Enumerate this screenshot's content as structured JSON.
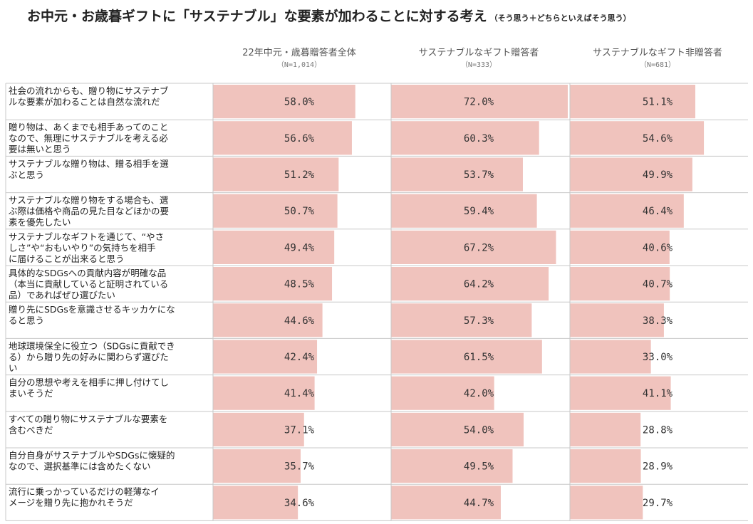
{
  "title": {
    "main": "お中元・お歳暮ギフトに「サステナブル」な要素が加わることに対する考え",
    "sub": "（そう思う＋どちらといえばそう思う）"
  },
  "colors": {
    "bar": "#f0c3bd",
    "grid": "#c8c8c8",
    "row_line": "#c8c8c8"
  },
  "chart_data": {
    "type": "bar",
    "orientation": "horizontal",
    "xlim": [
      0,
      72
    ],
    "grid": false,
    "value_suffix": "%",
    "categories": [
      [
        "社会の流れからも、贈り物にサステナブ",
        "ルな要素が加わることは自然な流れだ"
      ],
      [
        "贈り物は、あくまでも相手あってのこと",
        "なので、無理にサステナブルを考える必",
        "要は無いと思う"
      ],
      [
        "サステナブルな贈り物は、贈る相手を選",
        "ぶと思う"
      ],
      [
        "サステナブルな贈り物をする場合も、選",
        "ぶ際は価格や商品の見た目などほかの要",
        "素を優先したい"
      ],
      [
        "サステナブルなギフトを通じて、“やさ",
        "しさ”や“おもいやり”の気持ちを相手",
        "に届けることが出来ると思う"
      ],
      [
        "具体的なSDGsへの貢献内容が明確な品",
        "（本当に貢献していると証明されている",
        "品）であればぜひ選びたい"
      ],
      [
        "贈り先にSDGsを意識させるキッカケにな",
        "ると思う"
      ],
      [
        "地球環境保全に役立つ（SDGsに貢献でき",
        "る）から贈り先の好みに関わらず選びた",
        "い"
      ],
      [
        "自分の思想や考えを相手に押し付けてし",
        "まいそうだ"
      ],
      [
        "すべての贈り物にサステナブルな要素を",
        "含むべきだ"
      ],
      [
        "自分自身がサステナブルやSDGsに懐疑的",
        "なので、選択基準には含めたくない"
      ],
      [
        "流行に乗っかっているだけの軽薄なイ",
        "メージを贈り先に抱かれそうだ"
      ]
    ],
    "series": [
      {
        "name": "22年中元・歳暮贈答者全体",
        "n_label": "（N=1,014）",
        "values": [
          58.0,
          56.6,
          51.2,
          50.7,
          49.4,
          48.5,
          44.6,
          42.4,
          41.4,
          37.1,
          35.7,
          34.6
        ],
        "labels": [
          "58.0%",
          "56.6%",
          "51.2%",
          "50.7%",
          "49.4%",
          "48.5%",
          "44.6%",
          "42.4%",
          "41.4%",
          "37.1%",
          "35.7%",
          "34.6%"
        ]
      },
      {
        "name": "サステナブルなギフト贈答者",
        "n_label": "（N=333）",
        "values": [
          72.0,
          60.3,
          53.7,
          59.4,
          67.2,
          64.2,
          57.3,
          61.5,
          42.0,
          54.0,
          49.5,
          44.7
        ],
        "labels": [
          "72.0%",
          "60.3%",
          "53.7%",
          "59.4%",
          "67.2%",
          "64.2%",
          "57.3%",
          "61.5%",
          "42.0%",
          "54.0%",
          "49.5%",
          "44.7%"
        ]
      },
      {
        "name": "サステナブルなギフト非贈答者",
        "n_label": "（N=681）",
        "values": [
          51.1,
          54.6,
          49.9,
          46.4,
          40.6,
          40.7,
          38.3,
          33.0,
          41.1,
          28.8,
          28.9,
          29.7
        ],
        "labels": [
          "51.1%",
          "54.6%",
          "49.9%",
          "46.4%",
          "40.6%",
          "40.7%",
          "38.3%",
          "33.0%",
          "41.1%",
          "28.8%",
          "28.9%",
          "29.7%"
        ]
      }
    ]
  }
}
